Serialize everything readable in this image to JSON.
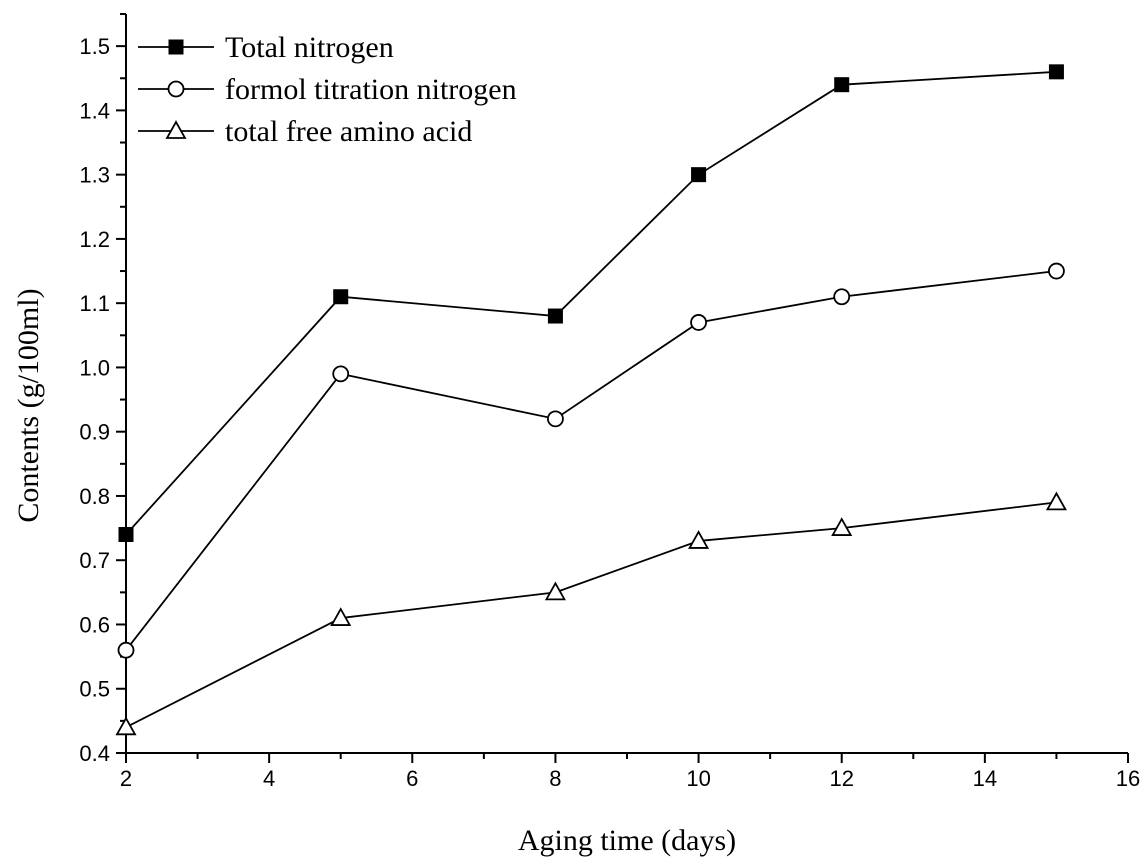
{
  "chart_data": {
    "type": "line",
    "title": "",
    "xlabel": "Aging time (days)",
    "ylabel": "Contents (g/100ml)",
    "xlim": [
      2,
      16
    ],
    "ylim": [
      0.4,
      1.55
    ],
    "xticks": [
      2,
      4,
      6,
      8,
      10,
      12,
      14,
      16
    ],
    "yticks": [
      0.4,
      0.5,
      0.6,
      0.7,
      0.8,
      0.9,
      1.0,
      1.1,
      1.2,
      1.3,
      1.4,
      1.5
    ],
    "xtick_labels": [
      "2",
      "4",
      "6",
      "8",
      "10",
      "12",
      "14",
      "16"
    ],
    "ytick_labels": [
      "0.4",
      "0.5",
      "0.6",
      "0.7",
      "0.8",
      "0.9",
      "1.0",
      "1.1",
      "1.2",
      "1.3",
      "1.4",
      "1.5"
    ],
    "grid": false,
    "legend_position": "top-left",
    "x": [
      2,
      5,
      8,
      10,
      12,
      15
    ],
    "series": [
      {
        "name": "Total nitrogen",
        "marker": "filled-square",
        "values": [
          0.74,
          1.11,
          1.08,
          1.3,
          1.44,
          1.46
        ]
      },
      {
        "name": "formol titration nitrogen",
        "marker": "open-circle",
        "values": [
          0.56,
          0.99,
          0.92,
          1.07,
          1.11,
          1.15
        ]
      },
      {
        "name": "total free amino acid",
        "marker": "open-triangle",
        "values": [
          0.44,
          0.61,
          0.65,
          0.73,
          0.75,
          0.79
        ]
      }
    ],
    "line_color": "#000000"
  }
}
